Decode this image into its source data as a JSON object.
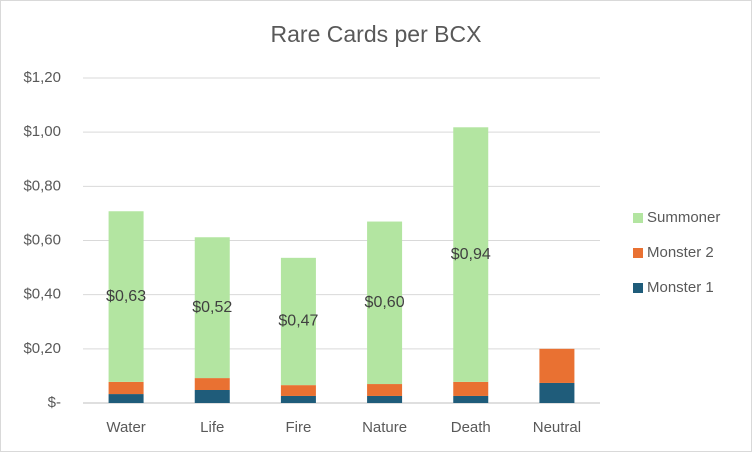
{
  "chart_data": {
    "type": "stacked_bar",
    "title": "Rare Cards per BCX",
    "categories": [
      "Water",
      "Life",
      "Fire",
      "Nature",
      "Death",
      "Neutral"
    ],
    "series": [
      {
        "name": "Monster 1",
        "color": "#1f5c7a",
        "values": [
          0.033,
          0.048,
          0.026,
          0.026,
          0.026,
          0.074
        ]
      },
      {
        "name": "Monster 2",
        "color": "#e97132",
        "values": [
          0.045,
          0.044,
          0.04,
          0.044,
          0.052,
          0.126
        ]
      },
      {
        "name": "Summoner",
        "color": "#b3e5a1",
        "values": [
          0.63,
          0.52,
          0.47,
          0.6,
          0.94,
          null
        ],
        "value_labels": [
          "$0,63",
          "$0,52",
          "$0,47",
          "$0,60",
          "$0,94",
          null
        ]
      }
    ],
    "ylim": [
      0,
      1.2
    ],
    "yticks": [
      {
        "value": 0,
        "label": "$-"
      },
      {
        "value": 0.2,
        "label": "$0,20"
      },
      {
        "value": 0.4,
        "label": "$0,40"
      },
      {
        "value": 0.6,
        "label": "$0,60"
      },
      {
        "value": 0.8,
        "label": "$0,80"
      },
      {
        "value": 1.0,
        "label": "$1,00"
      },
      {
        "value": 1.2,
        "label": "$1,20"
      }
    ],
    "grid": true,
    "legend": "right"
  }
}
